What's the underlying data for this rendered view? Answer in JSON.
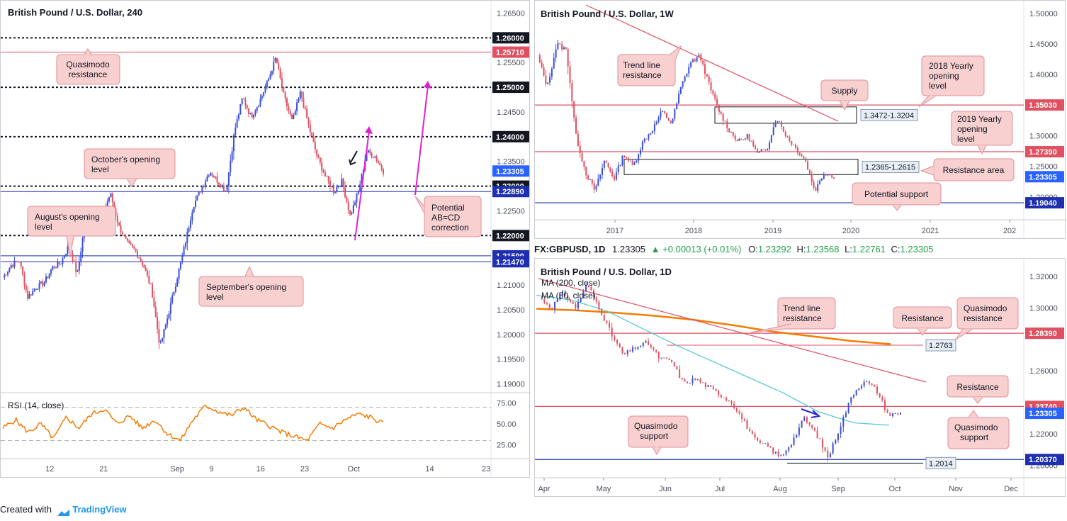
{
  "footer": {
    "created_with": "Created with",
    "brand": "TradingView"
  },
  "header": {
    "symbol": "FX:GBPUSD, 1D",
    "last": "1.23305",
    "change": "+0.00013 (+0.01%)",
    "o_label": "O:",
    "o": "1.23292",
    "h_label": "H:",
    "h": "1.23568",
    "l_label": "L:",
    "l": "1.22761",
    "c_label": "C:",
    "c": "1.23305"
  },
  "colors": {
    "up": "#3b4fd8",
    "down": "#e05060",
    "level_red": "#e05060",
    "level_blue": "#1e2fb0",
    "magenta": "#e020d0",
    "rsi": "#f57c00",
    "ma200": "#f57c00",
    "ma50": "#5bc8dc",
    "label_bg": "#f8d0d0",
    "label_border": "#e08f97"
  },
  "chart_data": [
    {
      "id": "h4",
      "title": "British Pound / U.S. Dollar, 240",
      "type": "candlestick",
      "ylim": [
        1.1885,
        1.2665
      ],
      "y_ticks": [
        "1.26500",
        "1.25500",
        "1.24500",
        "1.23500",
        "1.22500",
        "1.21000",
        "1.20500",
        "1.20000",
        "1.19500",
        "1.19000"
      ],
      "x_ticks": [
        "12",
        "21",
        "Sep",
        "9",
        "16",
        "23",
        "Oct",
        "14",
        "23"
      ],
      "x_tick_pos": [
        0.1,
        0.21,
        0.36,
        0.43,
        0.53,
        0.62,
        0.72,
        0.875,
        0.99
      ],
      "levels": [
        {
          "value": 1.26,
          "label": "1.26000",
          "style": "dotted",
          "color": "#131722"
        },
        {
          "value": 1.2571,
          "label": "1.25710",
          "style": "solid",
          "color": "#e05060"
        },
        {
          "value": 1.25,
          "label": "1.25000",
          "style": "dotted",
          "color": "#131722"
        },
        {
          "value": 1.24,
          "label": "1.24000",
          "style": "dotted",
          "color": "#131722"
        },
        {
          "value": 1.23,
          "label": "1.23000",
          "style": "dotted",
          "color": "#131722"
        },
        {
          "value": 1.2289,
          "label": "1.22890",
          "style": "solid",
          "color": "#1e2fb0"
        },
        {
          "value": 1.22,
          "label": "1.22000",
          "style": "dotted",
          "color": "#131722"
        },
        {
          "value": 1.2159,
          "label": "1.21590",
          "style": "solid",
          "color": "#1e2fb0"
        },
        {
          "value": 1.2147,
          "label": "1.21470",
          "style": "solid",
          "color": "#1e2fb0"
        }
      ],
      "last_price": {
        "value": 1.23305,
        "label": "1.23305"
      },
      "annotations": [
        "Quasimodo resistance",
        "October's opening level",
        "August's opening level",
        "September's opening level",
        "Potential AB=CD correction"
      ],
      "rsi": {
        "label": "RSI (14, close)",
        "ticks": [
          "75.00",
          "50.00",
          "25.00"
        ],
        "upper": 70,
        "lower": 30
      }
    },
    {
      "id": "w1",
      "title": "British Pound / U.S. Dollar, 1W",
      "type": "candlestick",
      "ylim": [
        1.165,
        1.515
      ],
      "y_ticks": [
        "1.50000",
        "1.45000",
        "1.40000",
        "1.30000",
        "1.25000",
        "1.20000"
      ],
      "x_ticks": [
        "2017",
        "2018",
        "2019",
        "2020",
        "2021",
        "202"
      ],
      "levels": [
        {
          "value": 1.3503,
          "label": "1.35030",
          "color": "#e05060"
        },
        {
          "value": 1.2739,
          "label": "1.27390",
          "color": "#e05060"
        },
        {
          "value": 1.1904,
          "label": "1.19040",
          "color": "#1e2fb0"
        }
      ],
      "zones": [
        {
          "label": "1.3472-1.3204",
          "top": 1.3472,
          "bottom": 1.3204
        },
        {
          "label": "1.2365-1.2615",
          "top": 1.2615,
          "bottom": 1.2365
        }
      ],
      "last_price": {
        "value": 1.23305,
        "label": "1.23305"
      },
      "annotations": [
        "Trend line resistance",
        "2018 Yearly opening level",
        "Supply",
        "2019 Yearly opening level",
        "Resistance area",
        "Potential support"
      ]
    },
    {
      "id": "d1",
      "title": "British Pound / U.S. Dollar, 1D",
      "type": "candlestick",
      "ylim": [
        1.193,
        1.329
      ],
      "y_ticks": [
        "1.32000",
        "1.30000",
        "1.26000",
        "1.22000",
        "1.20000"
      ],
      "x_ticks": [
        "Apr",
        "May",
        "Jun",
        "Jul",
        "Aug",
        "Sep",
        "Oct",
        "Nov",
        "Dec"
      ],
      "series": [
        {
          "name": "MA (200, close)"
        },
        {
          "name": "MA (50, close)"
        }
      ],
      "levels": [
        {
          "value": 1.2839,
          "label": "1.28390",
          "color": "#e05060"
        },
        {
          "value": 1.2374,
          "label": "1.23740",
          "color": "#e05060"
        },
        {
          "value": 1.2037,
          "label": "1.20370",
          "color": "#1e2fb0"
        }
      ],
      "small_levels": [
        {
          "value": 1.2763,
          "label": "1.2763"
        },
        {
          "value": 1.2014,
          "label": "1.2014"
        }
      ],
      "last_price": {
        "value": 1.23305,
        "label": "1.23305"
      },
      "annotations": [
        "Trend line resistance",
        "Resistance",
        "Quasimodo resistance",
        "Resistance",
        "Quasimodo support",
        "Quasimodo support"
      ]
    }
  ]
}
